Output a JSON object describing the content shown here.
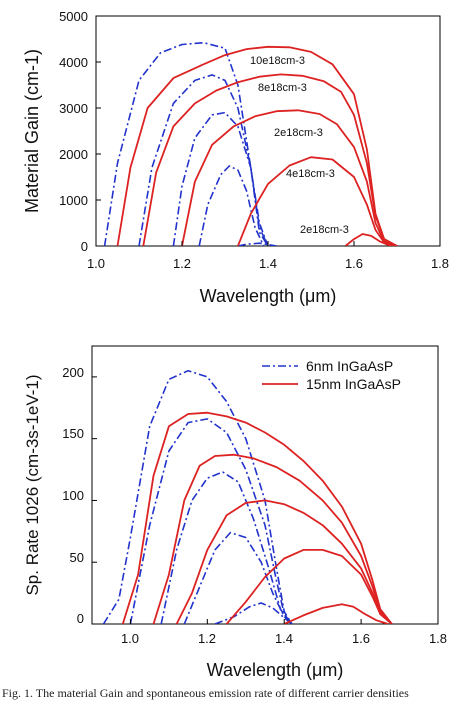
{
  "caption": "Fig. 1.   The material Gain and spontaneous emission rate of different carrier densities",
  "chart_data": [
    {
      "type": "line",
      "id": "gain",
      "xlabel": "Wavelength (μm)",
      "ylabel": "Material Gain (cm-1)",
      "xlim": [
        1.0,
        1.8
      ],
      "ylim": [
        0,
        5000
      ],
      "xticks": [
        "1.0",
        "1.2",
        "1.4",
        "1.6",
        "1.8"
      ],
      "yticks": [
        "0",
        "1000",
        "2000",
        "3000",
        "4000",
        "5000"
      ],
      "annotations": [
        "10e18cm-3",
        "8e18cm-3",
        "2e18cm-3",
        "4e18cm-3",
        "2e18cm-3"
      ],
      "series": [
        {
          "style": "dashdot",
          "color": "#2233cc",
          "x": [
            1.02,
            1.05,
            1.1,
            1.15,
            1.2,
            1.25,
            1.3,
            1.33,
            1.36,
            1.38,
            1.4
          ],
          "y": [
            0,
            1800,
            3600,
            4200,
            4380,
            4420,
            4300,
            3500,
            1700,
            300,
            0
          ]
        },
        {
          "style": "dashdot",
          "color": "#2233cc",
          "x": [
            1.1,
            1.13,
            1.18,
            1.23,
            1.27,
            1.3,
            1.33,
            1.36,
            1.38,
            1.4
          ],
          "y": [
            0,
            1700,
            3100,
            3600,
            3720,
            3600,
            3000,
            1700,
            400,
            0
          ]
        },
        {
          "style": "dashdot",
          "color": "#2233cc",
          "x": [
            1.18,
            1.2,
            1.23,
            1.27,
            1.3,
            1.33,
            1.36,
            1.38,
            1.4
          ],
          "y": [
            0,
            1300,
            2350,
            2850,
            2900,
            2600,
            1700,
            500,
            0
          ]
        },
        {
          "style": "dashdot",
          "color": "#2233cc",
          "x": [
            1.24,
            1.26,
            1.29,
            1.31,
            1.33,
            1.35,
            1.37,
            1.39
          ],
          "y": [
            0,
            900,
            1550,
            1740,
            1650,
            1200,
            400,
            0
          ]
        },
        {
          "style": "dashdot",
          "color": "#2233cc",
          "x": [
            1.33,
            1.35,
            1.38,
            1.42
          ],
          "y": [
            0,
            40,
            60,
            0
          ]
        },
        {
          "style": "solid",
          "color": "#dd2222",
          "x": [
            1.05,
            1.08,
            1.12,
            1.18,
            1.25,
            1.3,
            1.35,
            1.4,
            1.45,
            1.5,
            1.55,
            1.6,
            1.63,
            1.65,
            1.67,
            1.7
          ],
          "y": [
            0,
            1700,
            3000,
            3650,
            3950,
            4150,
            4280,
            4330,
            4320,
            4220,
            3950,
            3300,
            2100,
            700,
            150,
            0
          ]
        },
        {
          "style": "solid",
          "color": "#dd2222",
          "x": [
            1.11,
            1.14,
            1.18,
            1.23,
            1.28,
            1.33,
            1.38,
            1.43,
            1.48,
            1.53,
            1.57,
            1.6,
            1.63,
            1.65,
            1.67,
            1.7
          ],
          "y": [
            0,
            1600,
            2600,
            3100,
            3380,
            3560,
            3680,
            3730,
            3700,
            3580,
            3350,
            2850,
            1800,
            650,
            150,
            0
          ]
        },
        {
          "style": "solid",
          "color": "#dd2222",
          "x": [
            1.2,
            1.23,
            1.27,
            1.32,
            1.37,
            1.42,
            1.47,
            1.52,
            1.56,
            1.6,
            1.63,
            1.65,
            1.67,
            1.7
          ],
          "y": [
            0,
            1400,
            2200,
            2600,
            2820,
            2930,
            2950,
            2870,
            2650,
            2150,
            1400,
            500,
            100,
            0
          ]
        },
        {
          "style": "solid",
          "color": "#dd2222",
          "x": [
            1.33,
            1.36,
            1.4,
            1.45,
            1.5,
            1.55,
            1.6,
            1.63,
            1.65,
            1.67,
            1.7
          ],
          "y": [
            0,
            700,
            1350,
            1750,
            1930,
            1880,
            1500,
            900,
            350,
            80,
            0
          ]
        },
        {
          "style": "solid",
          "color": "#dd2222",
          "x": [
            1.58,
            1.6,
            1.62,
            1.64,
            1.66,
            1.68,
            1.7
          ],
          "y": [
            0,
            150,
            260,
            220,
            100,
            20,
            0
          ]
        }
      ]
    },
    {
      "type": "line",
      "id": "sprate",
      "xlabel": "Wavelength (μm)",
      "ylabel": "Sp. Rate 1026 (cm-3s-1eV-1)",
      "xlim": [
        0.9,
        1.8
      ],
      "ylim": [
        0,
        225
      ],
      "xticks": [
        "1.0",
        "1.2",
        "1.4",
        "1.6",
        "1.8"
      ],
      "yticks": [
        "0",
        "50",
        "100",
        "150",
        "200"
      ],
      "legend": [
        "6nm InGaAsP",
        "15nm InGaAsP"
      ],
      "series": [
        {
          "name": "6nm InGaAsP",
          "style": "dashdot",
          "color": "#2233cc",
          "x": [
            0.93,
            0.97,
            1.0,
            1.05,
            1.1,
            1.15,
            1.2,
            1.25,
            1.3,
            1.35,
            1.38,
            1.4,
            1.42
          ],
          "y": [
            0,
            20,
            70,
            160,
            198,
            205,
            200,
            180,
            150,
            100,
            45,
            10,
            0
          ]
        },
        {
          "style": "dashdot",
          "color": "#2233cc",
          "x": [
            1.0,
            1.05,
            1.1,
            1.15,
            1.2,
            1.25,
            1.3,
            1.35,
            1.38,
            1.4,
            1.42
          ],
          "y": [
            0,
            80,
            140,
            163,
            166,
            155,
            125,
            80,
            35,
            8,
            0
          ]
        },
        {
          "style": "dashdot",
          "color": "#2233cc",
          "x": [
            1.08,
            1.12,
            1.16,
            1.2,
            1.24,
            1.28,
            1.32,
            1.36,
            1.39,
            1.42
          ],
          "y": [
            0,
            60,
            100,
            118,
            123,
            115,
            85,
            45,
            12,
            0
          ]
        },
        {
          "style": "dashdot",
          "color": "#2233cc",
          "x": [
            1.14,
            1.18,
            1.22,
            1.26,
            1.3,
            1.34,
            1.37,
            1.4,
            1.42
          ],
          "y": [
            0,
            30,
            60,
            74,
            70,
            50,
            25,
            6,
            0
          ]
        },
        {
          "style": "dashdot",
          "color": "#2233cc",
          "x": [
            1.22,
            1.27,
            1.31,
            1.34,
            1.37,
            1.4,
            1.42
          ],
          "y": [
            0,
            6,
            14,
            17,
            13,
            5,
            0
          ]
        },
        {
          "name": "15nm InGaAsP",
          "style": "solid",
          "color": "#dd2222",
          "x": [
            0.98,
            1.02,
            1.06,
            1.1,
            1.15,
            1.2,
            1.25,
            1.3,
            1.35,
            1.4,
            1.45,
            1.5,
            1.55,
            1.6,
            1.63,
            1.65,
            1.68
          ],
          "y": [
            0,
            40,
            120,
            160,
            170,
            171,
            168,
            163,
            155,
            145,
            132,
            116,
            95,
            65,
            35,
            12,
            0
          ]
        },
        {
          "style": "solid",
          "color": "#dd2222",
          "x": [
            1.06,
            1.1,
            1.14,
            1.18,
            1.22,
            1.27,
            1.32,
            1.38,
            1.44,
            1.5,
            1.55,
            1.6,
            1.63,
            1.65,
            1.68
          ],
          "y": [
            0,
            40,
            100,
            128,
            136,
            137,
            134,
            127,
            116,
            100,
            82,
            55,
            30,
            10,
            0
          ]
        },
        {
          "style": "solid",
          "color": "#dd2222",
          "x": [
            1.12,
            1.16,
            1.2,
            1.25,
            1.3,
            1.35,
            1.4,
            1.45,
            1.5,
            1.55,
            1.6,
            1.63,
            1.65,
            1.68
          ],
          "y": [
            0,
            25,
            60,
            88,
            98,
            100,
            97,
            90,
            80,
            65,
            45,
            25,
            8,
            0
          ]
        },
        {
          "style": "solid",
          "color": "#dd2222",
          "x": [
            1.25,
            1.3,
            1.35,
            1.4,
            1.45,
            1.5,
            1.55,
            1.6,
            1.63,
            1.65,
            1.68
          ],
          "y": [
            0,
            18,
            38,
            53,
            60,
            60,
            55,
            40,
            22,
            8,
            0
          ]
        },
        {
          "style": "solid",
          "color": "#dd2222",
          "x": [
            1.4,
            1.45,
            1.5,
            1.55,
            1.58,
            1.61,
            1.64,
            1.67
          ],
          "y": [
            0,
            7,
            13,
            16,
            14,
            8,
            3,
            0
          ]
        }
      ]
    }
  ]
}
